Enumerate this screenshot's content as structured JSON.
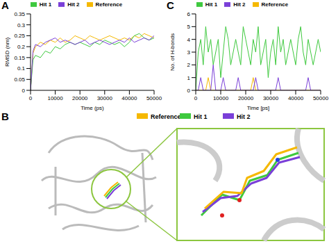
{
  "chart_data": [
    {
      "type": "line",
      "title": "A",
      "xlabel": "Time (ps)",
      "ylabel": "RMSD (nm)",
      "grid": false,
      "x": [
        0,
        1000,
        2000,
        4000,
        6000,
        8000,
        10000,
        12000,
        14000,
        16000,
        18000,
        20000,
        22000,
        24000,
        26000,
        28000,
        30000,
        32000,
        34000,
        36000,
        38000,
        40000,
        42000,
        44000,
        46000,
        48000,
        50000
      ],
      "xlim": [
        0,
        50000
      ],
      "xticks": [
        0,
        10000,
        20000,
        30000,
        40000,
        50000
      ],
      "ylim": [
        0,
        0.35
      ],
      "yticks": [
        0,
        0.05,
        0.1,
        0.15,
        0.2,
        0.25,
        0.3,
        0.35
      ],
      "series": [
        {
          "name": "Reference",
          "color": "#f5b800",
          "values": [
            0,
            0.17,
            0.2,
            0.22,
            0.21,
            0.23,
            0.22,
            0.24,
            0.22,
            0.23,
            0.25,
            0.24,
            0.23,
            0.25,
            0.24,
            0.23,
            0.24,
            0.25,
            0.24,
            0.23,
            0.24,
            0.23,
            0.25,
            0.24,
            0.26,
            0.25,
            0.24
          ]
        },
        {
          "name": "Hit 1",
          "color": "#3ec93e",
          "values": [
            0,
            0.14,
            0.16,
            0.15,
            0.18,
            0.17,
            0.2,
            0.19,
            0.21,
            0.22,
            0.21,
            0.22,
            0.21,
            0.2,
            0.22,
            0.21,
            0.23,
            0.22,
            0.21,
            0.22,
            0.2,
            0.22,
            0.25,
            0.26,
            0.24,
            0.23,
            0.24
          ]
        },
        {
          "name": "Hit 2",
          "color": "#7a3fd8",
          "values": [
            0,
            0.18,
            0.21,
            0.2,
            0.22,
            0.23,
            0.24,
            0.22,
            0.23,
            0.22,
            0.21,
            0.22,
            0.23,
            0.21,
            0.22,
            0.23,
            0.22,
            0.21,
            0.22,
            0.23,
            0.22,
            0.24,
            0.22,
            0.23,
            0.24,
            0.23,
            0.25
          ]
        }
      ]
    },
    {
      "type": "image",
      "title": "B",
      "series": [
        {
          "name": "Reference",
          "color": "#f5b800"
        },
        {
          "name": "Hit 1",
          "color": "#3ec93e"
        },
        {
          "name": "Hit 2",
          "color": "#7a3fd8"
        }
      ]
    },
    {
      "type": "line",
      "title": "C",
      "xlabel": "Time [ps]",
      "ylabel": "No. of H-bonds",
      "grid": false,
      "x": [
        0,
        1000,
        2000,
        3000,
        4000,
        5000,
        6000,
        7000,
        8000,
        9000,
        10000,
        11000,
        12000,
        13000,
        14000,
        15000,
        16000,
        17000,
        18000,
        19000,
        20000,
        21000,
        22000,
        23000,
        24000,
        25000,
        26000,
        27000,
        28000,
        29000,
        30000,
        31000,
        32000,
        33000,
        34000,
        35000,
        36000,
        37000,
        38000,
        39000,
        40000,
        41000,
        42000,
        43000,
        44000,
        45000,
        46000,
        47000,
        48000,
        49000,
        50000
      ],
      "xlim": [
        0,
        50000
      ],
      "xticks": [
        0,
        10000,
        20000,
        30000,
        40000,
        50000
      ],
      "ylim": [
        0,
        6
      ],
      "yticks": [
        0,
        1,
        2,
        3,
        4,
        5,
        6
      ],
      "series": [
        {
          "name": "Reference",
          "color": "#f5b800",
          "values": [
            0,
            0,
            0,
            0,
            0,
            1,
            0,
            0,
            0,
            0,
            0,
            0,
            0,
            0,
            0,
            0,
            0,
            0,
            0,
            0,
            0,
            0,
            0,
            1,
            0,
            0,
            0,
            0,
            0,
            0,
            0,
            0,
            0,
            0,
            0,
            0,
            0,
            0,
            0,
            0,
            0,
            0,
            0,
            0,
            0,
            0,
            0,
            0,
            0,
            0,
            0
          ]
        },
        {
          "name": "Hit 1",
          "color": "#3ec93e",
          "values": [
            0,
            3,
            4,
            2,
            5,
            3,
            4,
            2,
            3,
            4,
            1,
            3,
            5,
            4,
            2,
            3,
            4,
            3,
            2,
            5,
            4,
            3,
            2,
            4,
            3,
            5,
            2,
            3,
            4,
            1,
            3,
            4,
            2,
            5,
            3,
            4,
            2,
            3,
            4,
            3,
            2,
            4,
            5,
            3,
            2,
            4,
            3,
            2,
            3,
            4,
            3
          ]
        },
        {
          "name": "Hit 2",
          "color": "#7a3fd8",
          "values": [
            0,
            0,
            1,
            0,
            0,
            0,
            0,
            2,
            0,
            0,
            0,
            1,
            0,
            0,
            0,
            0,
            0,
            1,
            0,
            0,
            0,
            0,
            0,
            0,
            1,
            0,
            0,
            0,
            0,
            0,
            0,
            0,
            0,
            1,
            0,
            0,
            0,
            0,
            0,
            0,
            0,
            0,
            0,
            0,
            0,
            1,
            0,
            0,
            0,
            0,
            0
          ]
        }
      ]
    }
  ]
}
